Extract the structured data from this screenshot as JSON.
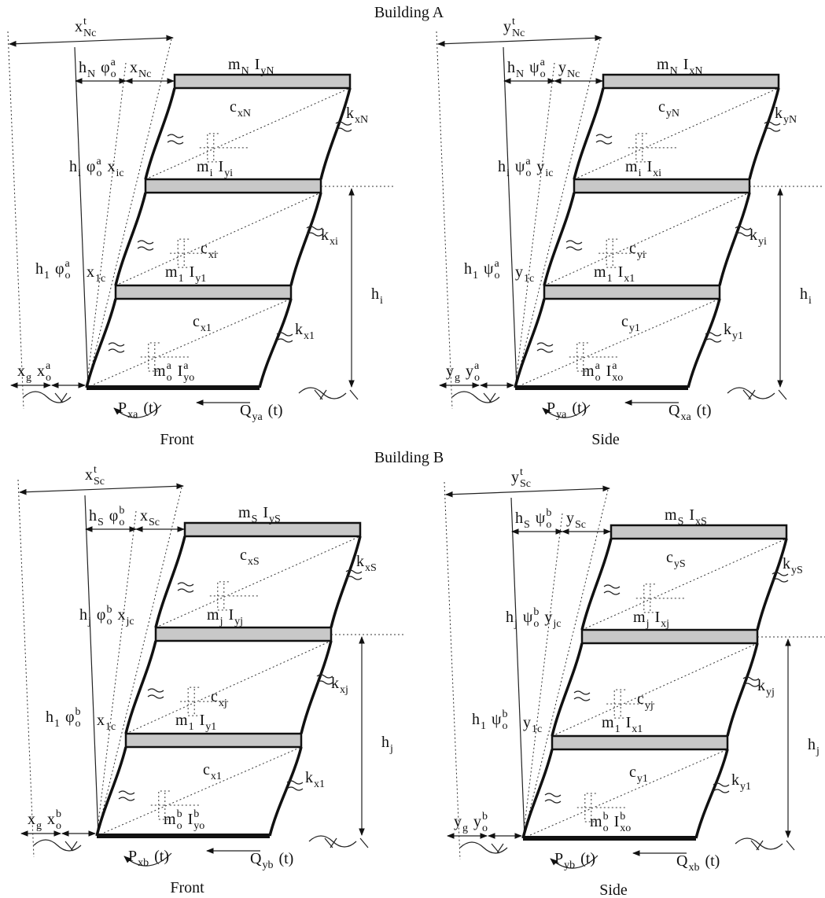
{
  "title_a": "Building A",
  "title_b": "Building B",
  "panels": [
    {
      "caption": "Front",
      "labels": [
        [
          {
            "base": "x",
            "sup": "t",
            "sub": "Nc"
          }
        ],
        [
          {
            "base": "h",
            "sub": "N"
          },
          {
            "base": "φ",
            "sup": "a",
            "sub": "o"
          }
        ],
        [
          {
            "base": "x",
            "sub": "Nc"
          }
        ],
        [
          {
            "base": "m",
            "sub": "N"
          },
          {
            "base": "I",
            "sub": "yN"
          }
        ],
        [
          {
            "base": "c",
            "sub": "xN"
          }
        ],
        [
          {
            "base": "k",
            "sub": "xN"
          }
        ],
        [
          {
            "base": "h",
            "sub": "i"
          },
          {
            "base": "φ",
            "sup": "a",
            "sub": "o"
          },
          {
            "base": "x",
            "sub": "ic"
          }
        ],
        [
          {
            "base": "m",
            "sub": "i"
          },
          {
            "base": "I",
            "sub": "yi"
          }
        ],
        [
          {
            "base": "c",
            "sub": "xi"
          }
        ],
        [
          {
            "base": "k",
            "sub": "xi"
          }
        ],
        [
          {
            "base": "h",
            "sub": "1"
          },
          {
            "base": "φ",
            "sup": "a",
            "sub": "o"
          }
        ],
        [
          {
            "base": "x",
            "sub": "1c"
          }
        ],
        [
          {
            "base": "m",
            "sub": "1"
          },
          {
            "base": "I",
            "sub": "y1"
          }
        ],
        [
          {
            "base": "h",
            "sub": "i"
          }
        ],
        [
          {
            "base": "c",
            "sub": "x1"
          }
        ],
        [
          {
            "base": "k",
            "sub": "x1"
          }
        ],
        [
          {
            "base": "x",
            "sub": "g"
          },
          {
            "base": "x",
            "sup": "a",
            "sub": "o"
          }
        ],
        [
          {
            "base": "m",
            "sup": "a",
            "sub": "o"
          },
          {
            "base": "I",
            "sup": "a",
            "sub": "yo"
          }
        ],
        [
          {
            "base": "P",
            "sub": "xa"
          },
          {
            "base": "(t)"
          }
        ],
        [
          {
            "base": "Q",
            "sub": "ya"
          },
          {
            "base": "(t)"
          }
        ]
      ]
    },
    {
      "caption": "Side",
      "labels": [
        [
          {
            "base": "y",
            "sup": "t",
            "sub": "Nc"
          }
        ],
        [
          {
            "base": "h",
            "sub": "N"
          },
          {
            "base": "ψ",
            "sup": "a",
            "sub": "o"
          }
        ],
        [
          {
            "base": "y",
            "sub": "Nc"
          }
        ],
        [
          {
            "base": "m",
            "sub": "N"
          },
          {
            "base": "I",
            "sub": "xN"
          }
        ],
        [
          {
            "base": "c",
            "sub": "yN"
          }
        ],
        [
          {
            "base": "k",
            "sub": "yN"
          }
        ],
        [
          {
            "base": "h",
            "sub": "i"
          },
          {
            "base": "ψ",
            "sup": "a",
            "sub": "o"
          },
          {
            "base": "y",
            "sub": "ic"
          }
        ],
        [
          {
            "base": "m",
            "sub": "i"
          },
          {
            "base": "I",
            "sub": "xi"
          }
        ],
        [
          {
            "base": "c",
            "sub": "yi"
          }
        ],
        [
          {
            "base": "k",
            "sub": "yi"
          }
        ],
        [
          {
            "base": "h",
            "sub": "1"
          },
          {
            "base": "ψ",
            "sup": "a",
            "sub": "o"
          }
        ],
        [
          {
            "base": "y",
            "sub": "1c"
          }
        ],
        [
          {
            "base": "m",
            "sub": "1"
          },
          {
            "base": "I",
            "sub": "x1"
          }
        ],
        [
          {
            "base": "h",
            "sub": "i"
          }
        ],
        [
          {
            "base": "c",
            "sub": "y1"
          }
        ],
        [
          {
            "base": "k",
            "sub": "y1"
          }
        ],
        [
          {
            "base": "y",
            "sub": "g"
          },
          {
            "base": "y",
            "sup": "a",
            "sub": "o"
          }
        ],
        [
          {
            "base": "m",
            "sup": "a",
            "sub": "o"
          },
          {
            "base": "I",
            "sup": "a",
            "sub": "xo"
          }
        ],
        [
          {
            "base": "P",
            "sub": "ya"
          },
          {
            "base": "(t)"
          }
        ],
        [
          {
            "base": "Q",
            "sub": "xa"
          },
          {
            "base": "(t)"
          }
        ]
      ]
    },
    {
      "caption": "Front",
      "labels": [
        [
          {
            "base": "x",
            "sup": "t",
            "sub": "Sc"
          }
        ],
        [
          {
            "base": "h",
            "sub": "S"
          },
          {
            "base": "φ",
            "sup": "b",
            "sub": "o"
          }
        ],
        [
          {
            "base": "x",
            "sub": "Sc"
          }
        ],
        [
          {
            "base": "m",
            "sub": "S"
          },
          {
            "base": "I",
            "sub": "yS"
          }
        ],
        [
          {
            "base": "c",
            "sub": "xS"
          }
        ],
        [
          {
            "base": "k",
            "sub": "xS"
          }
        ],
        [
          {
            "base": "h",
            "sub": "j"
          },
          {
            "base": "φ",
            "sup": "b",
            "sub": "o"
          },
          {
            "base": "x",
            "sub": "jc"
          }
        ],
        [
          {
            "base": "m",
            "sub": "j"
          },
          {
            "base": "I",
            "sub": "yj"
          }
        ],
        [
          {
            "base": "c",
            "sub": "xj"
          }
        ],
        [
          {
            "base": "k",
            "sub": "xj"
          }
        ],
        [
          {
            "base": "h",
            "sub": "1"
          },
          {
            "base": "φ",
            "sup": "b",
            "sub": "o"
          }
        ],
        [
          {
            "base": "x",
            "sub": "1c"
          }
        ],
        [
          {
            "base": "m",
            "sub": "1"
          },
          {
            "base": "I",
            "sub": "y1"
          }
        ],
        [
          {
            "base": "h",
            "sub": "j"
          }
        ],
        [
          {
            "base": "c",
            "sub": "x1"
          }
        ],
        [
          {
            "base": "k",
            "sub": "x1"
          }
        ],
        [
          {
            "base": "x",
            "sub": "g"
          },
          {
            "base": "x",
            "sup": "b",
            "sub": "o"
          }
        ],
        [
          {
            "base": "m",
            "sup": "b",
            "sub": "o"
          },
          {
            "base": "I",
            "sup": "b",
            "sub": "yo"
          }
        ],
        [
          {
            "base": "P",
            "sub": "xb"
          },
          {
            "base": "(t)"
          }
        ],
        [
          {
            "base": "Q",
            "sub": "yb"
          },
          {
            "base": "(t)"
          }
        ]
      ]
    },
    {
      "caption": "Side",
      "labels": [
        [
          {
            "base": "y",
            "sup": "t",
            "sub": "Sc"
          }
        ],
        [
          {
            "base": "h",
            "sub": "S"
          },
          {
            "base": "ψ",
            "sup": "b",
            "sub": "o"
          }
        ],
        [
          {
            "base": "y",
            "sub": "Sc"
          }
        ],
        [
          {
            "base": "m",
            "sub": "S"
          },
          {
            "base": "I",
            "sub": "xS"
          }
        ],
        [
          {
            "base": "c",
            "sub": "yS"
          }
        ],
        [
          {
            "base": "k",
            "sub": "yS"
          }
        ],
        [
          {
            "base": "h",
            "sub": "j"
          },
          {
            "base": "ψ",
            "sup": "b",
            "sub": "o"
          },
          {
            "base": "y",
            "sub": "jc"
          }
        ],
        [
          {
            "base": "m",
            "sub": "j"
          },
          {
            "base": "I",
            "sub": "xj"
          }
        ],
        [
          {
            "base": "c",
            "sub": "yj"
          }
        ],
        [
          {
            "base": "k",
            "sub": "yj"
          }
        ],
        [
          {
            "base": "h",
            "sub": "1"
          },
          {
            "base": "ψ",
            "sup": "b",
            "sub": "o"
          }
        ],
        [
          {
            "base": "y",
            "sub": "1c"
          }
        ],
        [
          {
            "base": "m",
            "sub": "1"
          },
          {
            "base": "I",
            "sub": "x1"
          }
        ],
        [
          {
            "base": "h",
            "sub": "j"
          }
        ],
        [
          {
            "base": "c",
            "sub": "y1"
          }
        ],
        [
          {
            "base": "k",
            "sub": "y1"
          }
        ],
        [
          {
            "base": "y",
            "sub": "g"
          },
          {
            "base": "y",
            "sup": "b",
            "sub": "o"
          }
        ],
        [
          {
            "base": "m",
            "sup": "b",
            "sub": "o"
          },
          {
            "base": "I",
            "sup": "b",
            "sub": "xo"
          }
        ],
        [
          {
            "base": "P",
            "sub": "yb"
          },
          {
            "base": "(t)"
          }
        ],
        [
          {
            "base": "Q",
            "sub": "xb"
          },
          {
            "base": "(t)"
          }
        ]
      ]
    }
  ]
}
